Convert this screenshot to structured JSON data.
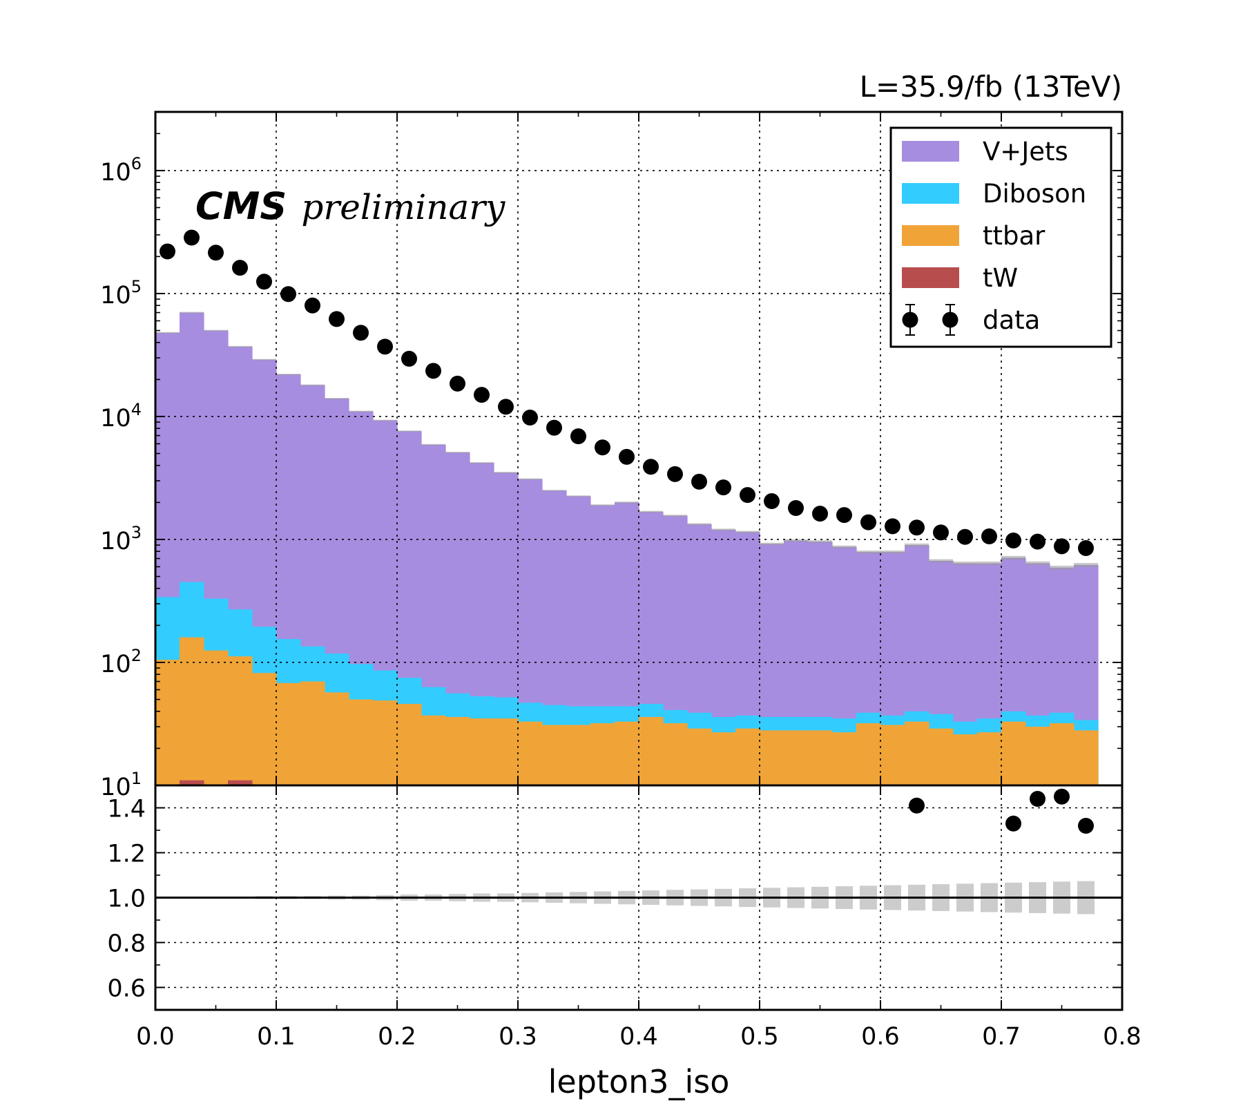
{
  "chart_data": {
    "type": "stacked-histogram-with-ratio",
    "header": {
      "lumi_label": "L=35.9/fb (13TeV)",
      "cms_label": "CMS",
      "preliminary_label": "preliminary"
    },
    "xlabel": "lepton3_iso",
    "xlim": [
      0.0,
      0.8
    ],
    "x_ticks": [
      "0.0",
      "0.1",
      "0.2",
      "0.3",
      "0.4",
      "0.5",
      "0.6",
      "0.7",
      "0.8"
    ],
    "main": {
      "yscale": "log",
      "ylim": [
        10,
        3000000
      ],
      "y_ticks": [
        10,
        100,
        1000,
        10000,
        100000,
        1000000
      ],
      "y_tick_exponents": [
        "1",
        "2",
        "3",
        "4",
        "5",
        "6"
      ],
      "y_tick_base": "10",
      "grid": true
    },
    "ratio": {
      "ylim": [
        0.5,
        1.5
      ],
      "y_ticks": [
        "0.6",
        "0.8",
        "1.0",
        "1.2",
        "1.4"
      ],
      "reference_line": 1.0,
      "grid": true
    },
    "bin_edges": [
      0.0,
      0.02,
      0.04,
      0.06,
      0.08,
      0.1,
      0.12,
      0.14,
      0.16,
      0.18,
      0.2,
      0.22,
      0.24,
      0.26,
      0.28,
      0.3,
      0.32,
      0.34,
      0.36,
      0.38,
      0.4,
      0.42,
      0.44,
      0.46,
      0.48,
      0.5,
      0.52,
      0.54,
      0.56,
      0.58,
      0.6,
      0.62,
      0.64,
      0.66,
      0.68,
      0.7,
      0.72,
      0.74,
      0.76,
      0.78
    ],
    "legend_position": "top-right",
    "stack_order": [
      "tW",
      "ttbar",
      "Diboson",
      "V+Jets"
    ],
    "series": [
      {
        "name": "V+Jets",
        "color": "#a78de0",
        "cumulative_values": [
          48000,
          70000,
          50000,
          37000,
          29000,
          22000,
          18000,
          14000,
          11000,
          9300,
          7600,
          5900,
          5100,
          4200,
          3500,
          3100,
          2500,
          2250,
          1900,
          2000,
          1680,
          1560,
          1330,
          1200,
          1150,
          920,
          980,
          960,
          870,
          790,
          790,
          900,
          670,
          640,
          640,
          710,
          640,
          590,
          620
        ]
      },
      {
        "name": "Diboson",
        "color": "#33ccff",
        "cumulative_values": [
          340,
          450,
          330,
          270,
          195,
          155,
          135,
          118,
          97,
          86,
          75,
          63,
          56,
          53,
          52,
          47,
          45,
          44,
          44,
          44,
          46,
          41,
          39,
          36,
          37,
          36,
          36,
          36,
          35,
          39,
          37,
          40,
          38,
          33,
          35,
          40,
          37,
          39,
          34
        ]
      },
      {
        "name": "ttbar",
        "color": "#f0a437",
        "cumulative_values": [
          105,
          160,
          125,
          112,
          82,
          68,
          70,
          57,
          50,
          49,
          46,
          37,
          36,
          35,
          35,
          33,
          31,
          31,
          32,
          33,
          36,
          32,
          29,
          27,
          29,
          28,
          28,
          28,
          27,
          32,
          31,
          33,
          29,
          26,
          27,
          33,
          30,
          32,
          28
        ]
      },
      {
        "name": "tW",
        "color": "#b84d4d",
        "cumulative_values": [
          10,
          11,
          10,
          11,
          10,
          10,
          10,
          10,
          10,
          10,
          10,
          10,
          10,
          10,
          10,
          10,
          10,
          10,
          10,
          10,
          10,
          10,
          10,
          10,
          10,
          10,
          10,
          10,
          10,
          10,
          10,
          10,
          10,
          10,
          10,
          10,
          10,
          10,
          10
        ]
      },
      {
        "name": "data",
        "color": "#000000",
        "x": [
          0.01,
          0.03,
          0.05,
          0.07,
          0.09,
          0.11,
          0.13,
          0.15,
          0.17,
          0.19,
          0.21,
          0.23,
          0.25,
          0.27,
          0.29,
          0.31,
          0.33,
          0.35,
          0.37,
          0.39,
          0.41,
          0.43,
          0.45,
          0.47,
          0.49,
          0.51,
          0.53,
          0.55,
          0.57,
          0.59,
          0.61,
          0.63,
          0.65,
          0.67,
          0.69,
          0.71,
          0.73,
          0.75,
          0.77
        ],
        "values": [
          220000,
          285000,
          215000,
          162000,
          125000,
          99000,
          80000,
          62000,
          48000,
          37000,
          29500,
          23500,
          18500,
          15000,
          12000,
          9800,
          8100,
          6900,
          5600,
          4700,
          3900,
          3400,
          2950,
          2650,
          2300,
          2050,
          1800,
          1620,
          1580,
          1380,
          1280,
          1250,
          1140,
          1050,
          1060,
          980,
          960,
          880,
          850
        ]
      }
    ],
    "mc_uncertainty_halfwidth": [
      0.002,
      0.002,
      0.002,
      0.002,
      0.003,
      0.003,
      0.003,
      0.004,
      0.004,
      0.005,
      0.006,
      0.006,
      0.007,
      0.008,
      0.008,
      0.009,
      0.01,
      0.011,
      0.012,
      0.013,
      0.014,
      0.015,
      0.016,
      0.017,
      0.018,
      0.019,
      0.02,
      0.021,
      0.022,
      0.023,
      0.024,
      0.025,
      0.026,
      0.027,
      0.028,
      0.029,
      0.03,
      0.031,
      0.032
    ],
    "ratio_points": [
      {
        "x": 0.63,
        "y": 1.41,
        "err": 0.015
      },
      {
        "x": 0.71,
        "y": 1.33,
        "err": 0.018
      },
      {
        "x": 0.73,
        "y": 1.44,
        "err": 0.022
      },
      {
        "x": 0.75,
        "y": 1.45,
        "err": 0.02
      },
      {
        "x": 0.77,
        "y": 1.32,
        "err": 0.02
      }
    ]
  }
}
